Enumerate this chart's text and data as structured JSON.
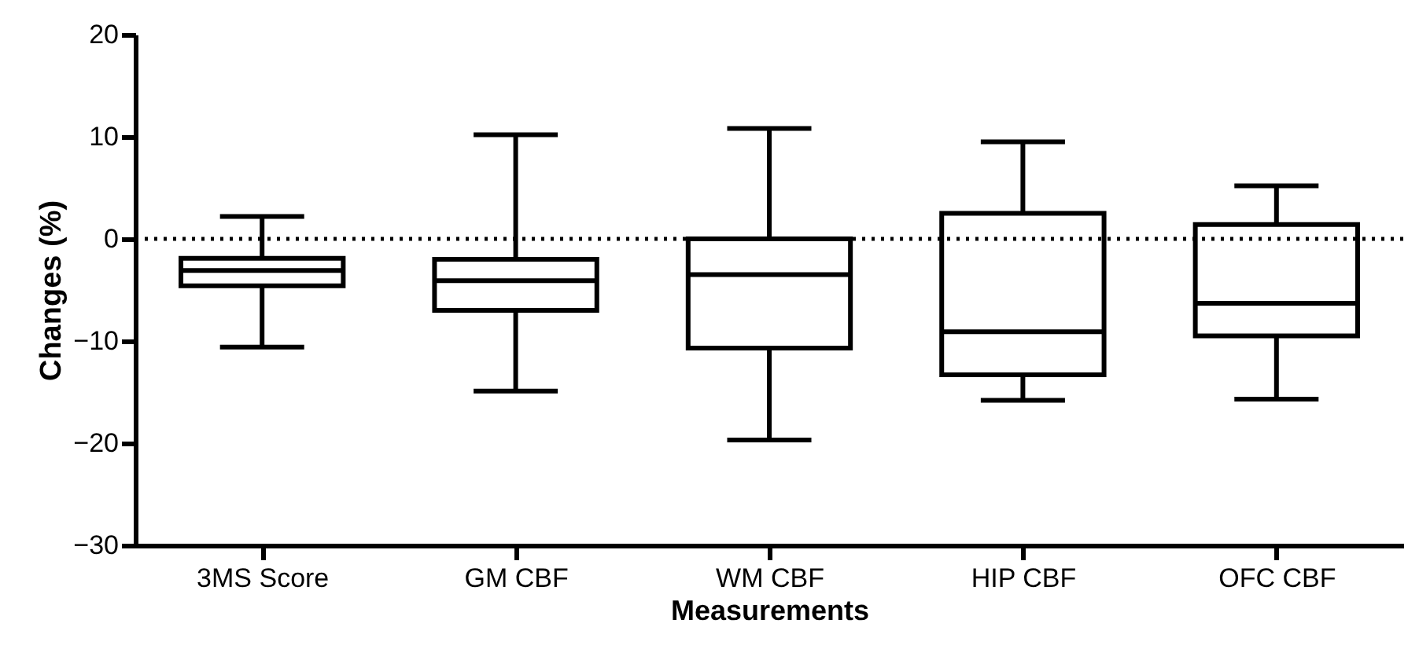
{
  "chart_data": {
    "type": "box",
    "xlabel": "Measurements",
    "ylabel": "Changes (%)",
    "categories": [
      "3MS Score",
      "GM CBF",
      "WM CBF",
      "HIP CBF",
      "OFC CBF"
    ],
    "boxes": [
      {
        "low": -10.6,
        "q1": -4.6,
        "median": -3.1,
        "q3": -1.9,
        "high": 2.2
      },
      {
        "low": -14.9,
        "q1": -7.0,
        "median": -4.1,
        "q3": -2.0,
        "high": 10.2
      },
      {
        "low": -19.7,
        "q1": -10.7,
        "median": -3.5,
        "q3": 0.0,
        "high": 10.8
      },
      {
        "low": -15.8,
        "q1": -13.3,
        "median": -9.1,
        "q3": 2.5,
        "high": 9.5
      },
      {
        "low": -15.7,
        "q1": -9.5,
        "median": -6.3,
        "q3": 1.4,
        "high": 5.2
      }
    ],
    "color": "#000000",
    "ylim": [
      -30,
      20
    ],
    "yticks": [
      -30,
      -20,
      -10,
      0,
      10,
      20
    ],
    "ref_lines": [
      {
        "axis": "y",
        "value": 0,
        "line_style": "dotted",
        "color": "#000000"
      }
    ],
    "grid": false
  }
}
